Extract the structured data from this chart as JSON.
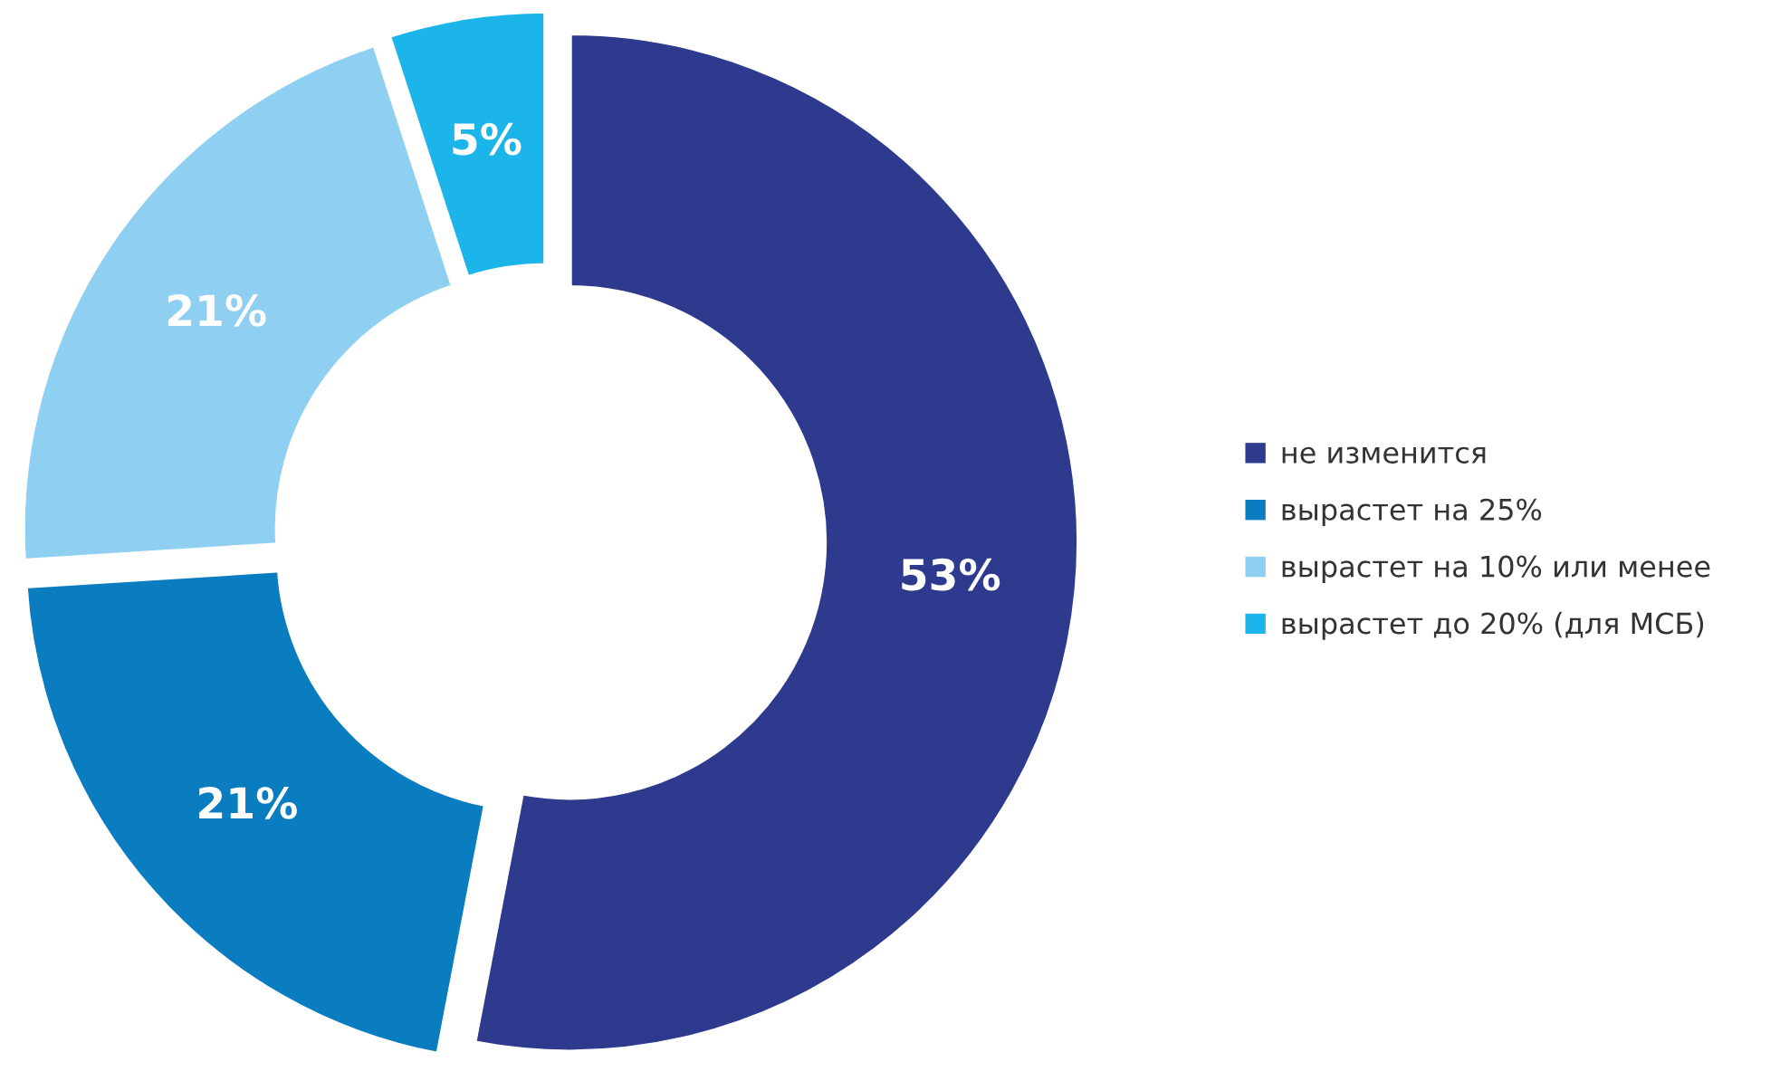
{
  "chart_data": {
    "type": "donut",
    "categories": [
      "не изменится",
      "вырастет на 25%",
      "вырастет на 10% или менее",
      "вырастет до 20% (для МСБ)"
    ],
    "values": [
      53,
      21,
      21,
      5
    ],
    "colors": [
      "#2e3a8e",
      "#0a7cc0",
      "#8fcff2",
      "#1cb5ea"
    ],
    "value_labels": [
      "53%",
      "21%",
      "21%",
      "5%"
    ],
    "legend": "right"
  }
}
